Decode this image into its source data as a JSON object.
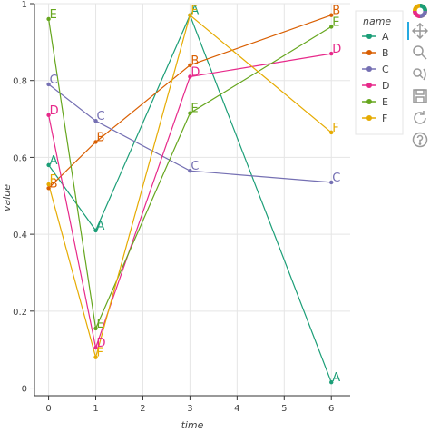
{
  "chart_data": {
    "type": "line",
    "xlabel": "time",
    "ylabel": "value",
    "xlim": [
      -0.3,
      6.4
    ],
    "ylim": [
      -0.02,
      1.0
    ],
    "x_ticks": [
      0,
      1,
      2,
      3,
      4,
      5,
      6
    ],
    "y_ticks": [
      0,
      0.2,
      0.4,
      0.6,
      0.8,
      1
    ],
    "grid": true,
    "legend": {
      "title": "name",
      "placement": "right"
    },
    "series": [
      {
        "name": "A",
        "color": "#1b9e77",
        "x": [
          0,
          1,
          3,
          6
        ],
        "y": [
          0.58,
          0.41,
          0.97,
          0.015
        ]
      },
      {
        "name": "B",
        "color": "#d95f02",
        "x": [
          0,
          1,
          3,
          6
        ],
        "y": [
          0.52,
          0.64,
          0.84,
          0.97
        ]
      },
      {
        "name": "C",
        "color": "#7570b3",
        "x": [
          0,
          1,
          3,
          6
        ],
        "y": [
          0.79,
          0.695,
          0.565,
          0.535
        ]
      },
      {
        "name": "D",
        "color": "#e7298a",
        "x": [
          0,
          1,
          3,
          6
        ],
        "y": [
          0.71,
          0.105,
          0.81,
          0.87
        ]
      },
      {
        "name": "E",
        "color": "#66a61e",
        "x": [
          0,
          1,
          3,
          6
        ],
        "y": [
          0.96,
          0.155,
          0.715,
          0.94
        ]
      },
      {
        "name": "F",
        "color": "#e6ab02",
        "x": [
          0,
          1,
          3,
          6
        ],
        "y": [
          0.53,
          0.08,
          0.97,
          0.665
        ]
      }
    ]
  },
  "toolbar": {
    "icons": [
      "logo-icon",
      "pan-icon",
      "box-zoom-icon",
      "wheel-zoom-icon",
      "save-icon",
      "reset-icon",
      "help-icon"
    ]
  }
}
